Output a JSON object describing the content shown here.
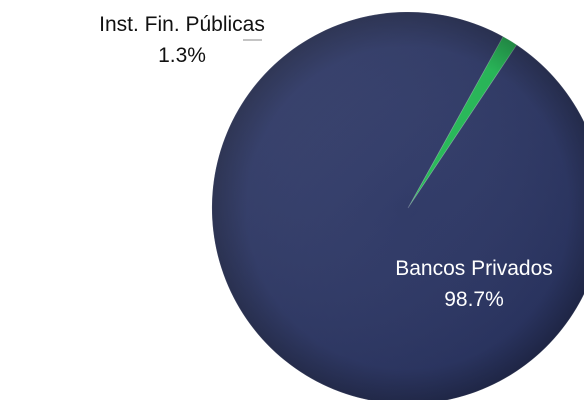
{
  "chart_data": {
    "type": "pie",
    "slices": [
      {
        "label": "Inst. Fin. Públicas",
        "value": 1.3,
        "value_label": "1.3%",
        "color": "#1fbf55"
      },
      {
        "label": "Bancos Privados",
        "value": 98.7,
        "value_label": "98.7%",
        "color": "#2a3566"
      }
    ],
    "title": "",
    "legend": "none",
    "colors": {
      "background": "#ffffff",
      "label_on_slice": "#ffffff",
      "label_outside": "#111111",
      "leader_line": "#8a8a8a"
    }
  }
}
